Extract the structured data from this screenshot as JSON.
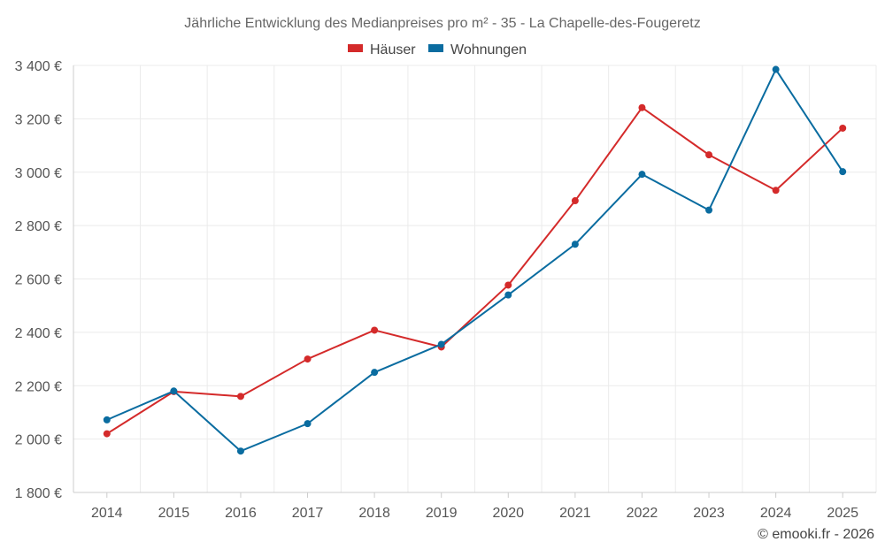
{
  "chart_data": {
    "type": "line",
    "title": "Jährliche Entwicklung des Medianpreises pro m² - 35 - La Chapelle-des-Fougeretz",
    "xlabel": "",
    "ylabel": "",
    "categories": [
      "2014",
      "2015",
      "2016",
      "2017",
      "2018",
      "2019",
      "2020",
      "2021",
      "2022",
      "2023",
      "2024",
      "2025"
    ],
    "ylim": [
      1800,
      3400
    ],
    "yticks": [
      1800,
      2000,
      2200,
      2400,
      2600,
      2800,
      3000,
      3200,
      3400
    ],
    "ytick_labels": [
      "1 800 €",
      "2 000 €",
      "2 200 €",
      "2 400 €",
      "2 600 €",
      "2 800 €",
      "3 000 €",
      "3 200 €",
      "3 400 €"
    ],
    "grid": true,
    "legend_position": "top-center",
    "series": [
      {
        "name": "Häuser",
        "color": "#d42a2a",
        "values": [
          2020,
          2178,
          2160,
          2300,
          2408,
          2345,
          2577,
          2893,
          3242,
          3065,
          2932,
          3165
        ]
      },
      {
        "name": "Wohnungen",
        "color": "#0a6ca0",
        "values": [
          2072,
          2180,
          1955,
          2058,
          2250,
          2355,
          2540,
          2730,
          2992,
          2858,
          3385,
          3002
        ]
      }
    ]
  },
  "credit": "© emooki.fr - 2026"
}
